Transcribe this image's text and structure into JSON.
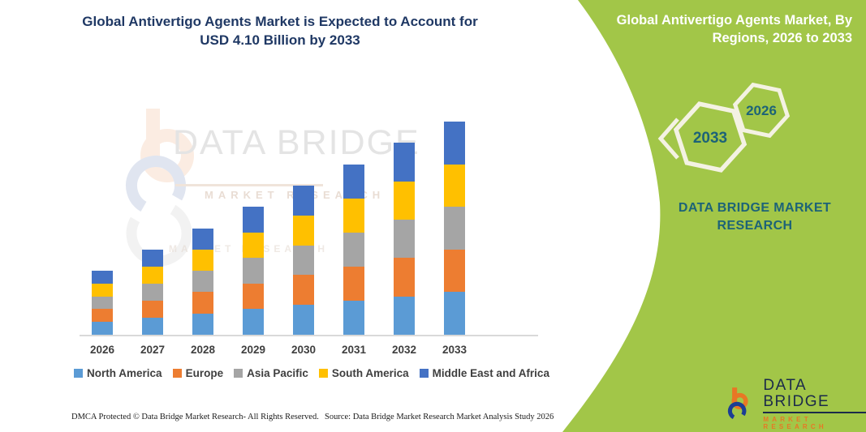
{
  "left_panel": {
    "title_line1": "Global Antivertigo Agents Market is Expected to Account for",
    "title_line2": "USD 4.10 Billion by 2033"
  },
  "watermark": {
    "brand": "DATA BRIDGE",
    "sub": "MARKET RESEARCH",
    "echo": "MARKET RESEARCH"
  },
  "chart_data": {
    "type": "bar",
    "stacked": true,
    "title": "Global Antivertigo Agents Market is Expected to Account for USD 4.10 Billion by 2033",
    "unit": "USD Billion",
    "categories": [
      "2026",
      "2027",
      "2028",
      "2029",
      "2030",
      "2031",
      "2032",
      "2033"
    ],
    "totals": [
      1.23,
      1.64,
      2.05,
      2.46,
      2.87,
      3.28,
      3.69,
      4.1
    ],
    "series": [
      {
        "name": "North America",
        "color": "#5B9BD5",
        "values": [
          0.246,
          0.328,
          0.41,
          0.492,
          0.574,
          0.656,
          0.738,
          0.82
        ]
      },
      {
        "name": "Europe",
        "color": "#ED7D31",
        "values": [
          0.246,
          0.328,
          0.41,
          0.492,
          0.574,
          0.656,
          0.738,
          0.82
        ]
      },
      {
        "name": "Asia Pacific",
        "color": "#A5A5A5",
        "values": [
          0.246,
          0.328,
          0.41,
          0.492,
          0.574,
          0.656,
          0.738,
          0.82
        ]
      },
      {
        "name": "South America",
        "color": "#FFC000",
        "values": [
          0.246,
          0.328,
          0.41,
          0.492,
          0.574,
          0.656,
          0.738,
          0.82
        ]
      },
      {
        "name": "Middle East and Africa",
        "color": "#4472C4",
        "values": [
          0.246,
          0.328,
          0.41,
          0.492,
          0.574,
          0.656,
          0.738,
          0.82
        ]
      }
    ],
    "ylim": [
      0,
      4.3
    ],
    "grid": false,
    "legend_position": "bottom"
  },
  "footer": {
    "left": "DMCA Protected © Data Bridge Market Research-  All Rights Reserved.",
    "right": "Source: Data Bridge Market Research  Market Analysis Study 2026"
  },
  "right_panel": {
    "title_line1": "Global Antivertigo Agents Market, By",
    "title_line2": "Regions, 2026 to 2033",
    "hexagon_back": "2033",
    "hexagon_front": "2026",
    "brand": "DATA BRIDGE MARKET RESEARCH",
    "logo": {
      "title": "DATA BRIDGE",
      "subtitle": "MARKET RESEARCH"
    },
    "colors": {
      "green": "#A2C648",
      "teal": "#1D6377",
      "navy": "#1B2A4A",
      "orange": "#E87725",
      "blue": "#1C3E94"
    }
  }
}
